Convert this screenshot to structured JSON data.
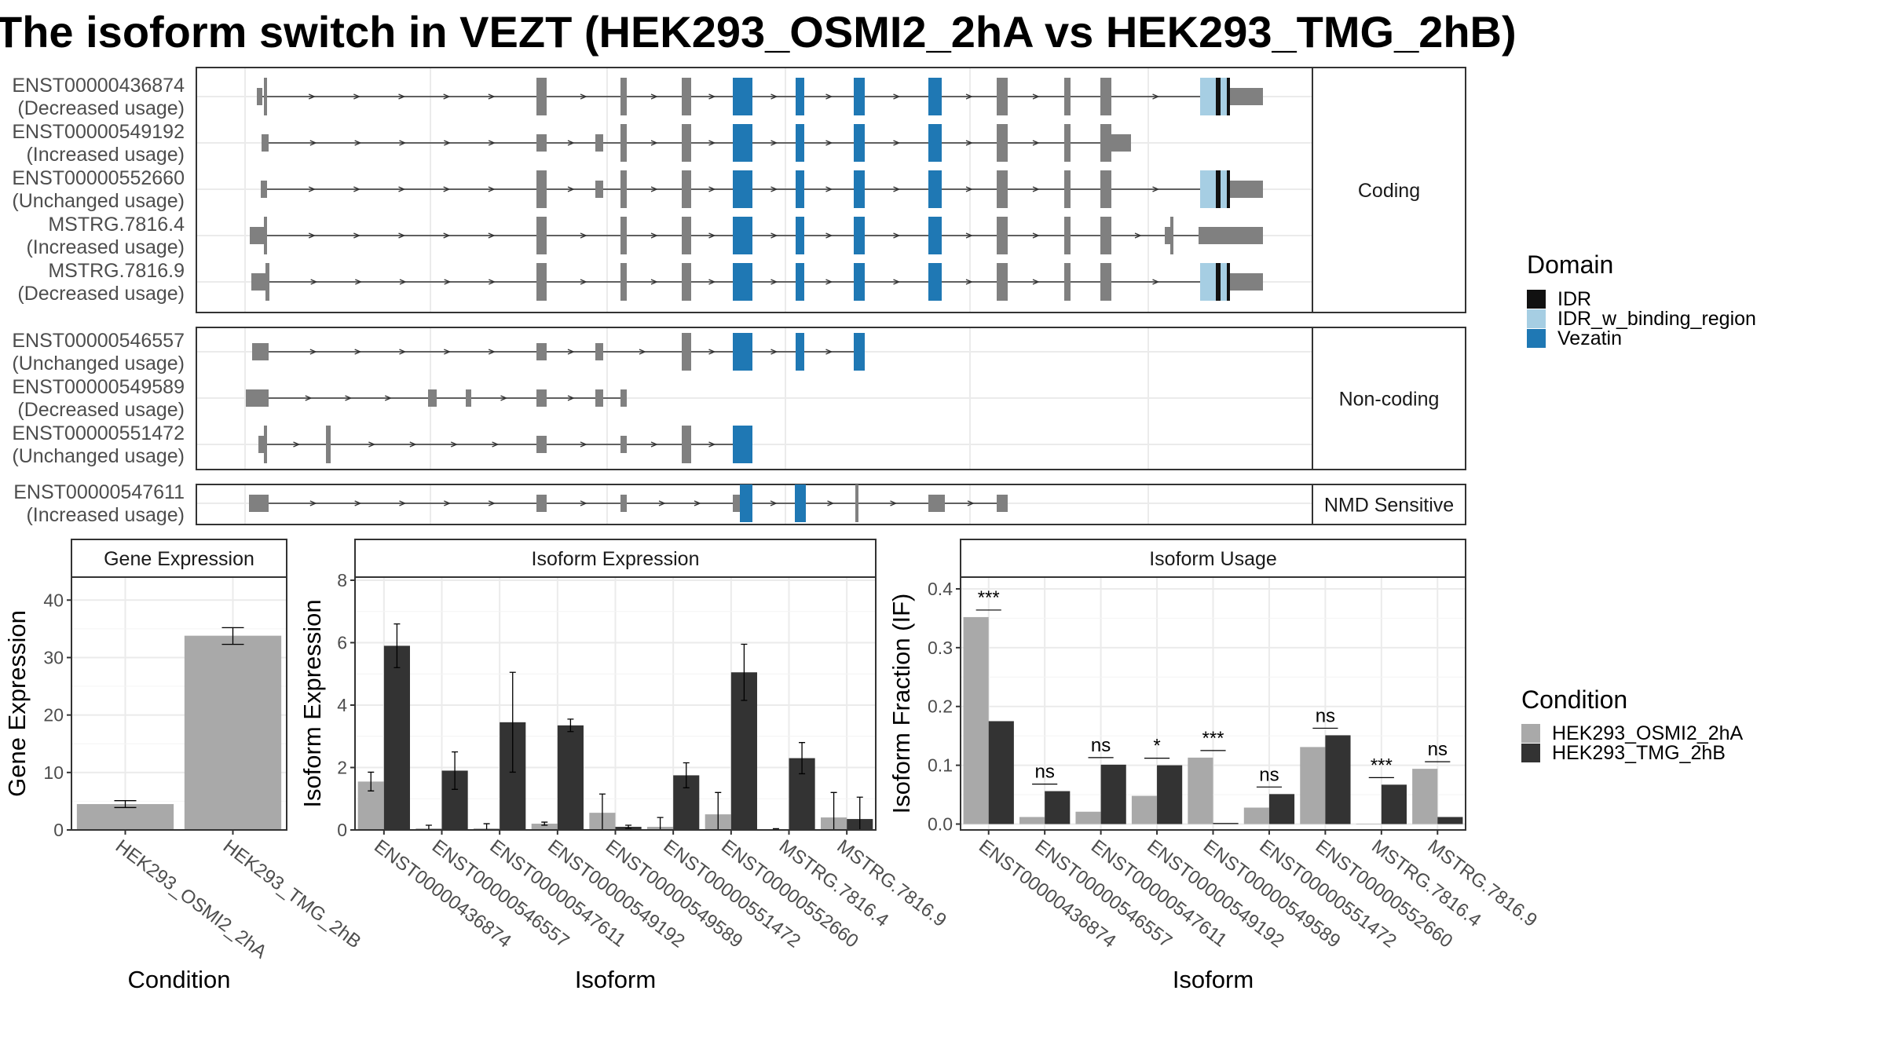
{
  "title": "The isoform switch in VEZT (HEK293_OSMI2_2hA vs HEK293_TMG_2hB)",
  "colors": {
    "cond_a": "#a9a9a9",
    "cond_b": "#333333",
    "exon": "#808080",
    "idr": "#111111",
    "idr_binding": "#a6cee3",
    "vezatin": "#1f78b4",
    "intron": "#333333"
  },
  "chart_data": [
    {
      "type": "gene-structure",
      "panels": [
        {
          "label": "Coding",
          "transcripts": [
            {
              "id": "ENST00000436874",
              "usage": "(Decreased usage)"
            },
            {
              "id": "ENST00000549192",
              "usage": "(Increased usage)"
            },
            {
              "id": "ENST00000552660",
              "usage": "(Unchanged usage)"
            },
            {
              "id": "MSTRG.7816.4",
              "usage": "(Increased usage)"
            },
            {
              "id": "MSTRG.7816.9",
              "usage": "(Decreased usage)"
            }
          ]
        },
        {
          "label": "Non-coding",
          "transcripts": [
            {
              "id": "ENST00000546557",
              "usage": "(Unchanged usage)"
            },
            {
              "id": "ENST00000549589",
              "usage": "(Decreased usage)"
            },
            {
              "id": "ENST00000551472",
              "usage": "(Unchanged usage)"
            }
          ]
        },
        {
          "label": "NMD Sensitive",
          "transcripts": [
            {
              "id": "ENST00000547611",
              "usage": "(Increased usage)"
            }
          ]
        }
      ],
      "legend": {
        "title": "Domain",
        "entries": [
          "IDR",
          "IDR_w_binding_region",
          "Vezatin"
        ]
      }
    },
    {
      "type": "bar",
      "title": "Gene Expression",
      "xlabel": "Condition",
      "ylabel": "Gene Expression",
      "categories": [
        "HEK293_OSMI2_2hA",
        "HEK293_TMG_2hB"
      ],
      "values": [
        4.5,
        33.8
      ],
      "errors": [
        [
          3.9,
          5.1
        ],
        [
          32.3,
          35.2
        ]
      ],
      "ylim": [
        0,
        44
      ],
      "yticks": [
        0,
        10,
        20,
        30,
        40
      ]
    },
    {
      "type": "bar",
      "title": "Isoform Expression",
      "xlabel": "Isoform",
      "ylabel": "Isoform Expression",
      "categories": [
        "ENST00000436874",
        "ENST00000546557",
        "ENST00000547611",
        "ENST00000549192",
        "ENST00000549589",
        "ENST00000551472",
        "ENST00000552660",
        "MSTRG.7816.4",
        "MSTRG.7816.9"
      ],
      "series": [
        {
          "name": "HEK293_OSMI2_2hA",
          "values": [
            1.55,
            0.05,
            0.05,
            0.2,
            0.55,
            0.1,
            0.5,
            0.02,
            0.4
          ],
          "errors": [
            [
              1.25,
              1.85
            ],
            [
              0.0,
              0.15
            ],
            [
              0.0,
              0.2
            ],
            [
              0.15,
              0.25
            ],
            [
              0.0,
              1.15
            ],
            [
              0.0,
              0.4
            ],
            [
              0.0,
              1.2
            ],
            [
              0.0,
              0.04
            ],
            [
              0.0,
              1.2
            ]
          ]
        },
        {
          "name": "HEK293_TMG_2hB",
          "values": [
            5.9,
            1.9,
            3.45,
            3.35,
            0.1,
            1.75,
            5.05,
            2.3,
            0.35
          ],
          "errors": [
            [
              5.2,
              6.6
            ],
            [
              1.3,
              2.5
            ],
            [
              1.85,
              5.05
            ],
            [
              3.15,
              3.55
            ],
            [
              0.05,
              0.15
            ],
            [
              1.35,
              2.15
            ],
            [
              4.15,
              5.95
            ],
            [
              1.8,
              2.8
            ],
            [
              0.0,
              1.05
            ]
          ]
        }
      ],
      "ylim": [
        0,
        8.1
      ],
      "yticks": [
        0,
        2,
        4,
        6,
        8
      ]
    },
    {
      "type": "bar",
      "title": "Isoform Usage",
      "xlabel": "Isoform",
      "ylabel": "Isoform Fraction (IF)",
      "categories": [
        "ENST00000436874",
        "ENST00000546557",
        "ENST00000547611",
        "ENST00000549192",
        "ENST00000549589",
        "ENST00000551472",
        "ENST00000552660",
        "MSTRG.7816.4",
        "MSTRG.7816.9"
      ],
      "series": [
        {
          "name": "HEK293_OSMI2_2hA",
          "values": [
            0.352,
            0.012,
            0.021,
            0.048,
            0.113,
            0.028,
            0.131,
            0.0,
            0.094
          ]
        },
        {
          "name": "HEK293_TMG_2hB",
          "values": [
            0.175,
            0.056,
            0.101,
            0.1,
            0.002,
            0.051,
            0.151,
            0.067,
            0.012
          ]
        }
      ],
      "significance": [
        "***",
        "ns",
        "ns",
        "*",
        "***",
        "ns",
        "ns",
        "***",
        "ns"
      ],
      "ylim": [
        -0.01,
        0.42
      ],
      "yticks": [
        0.0,
        0.1,
        0.2,
        0.3,
        0.4
      ],
      "ytick_labels": [
        "0.0",
        "0.1",
        "0.2",
        "0.3",
        "0.4"
      ]
    }
  ],
  "condition_legend": {
    "title": "Condition",
    "entries": [
      "HEK293_OSMI2_2hA",
      "HEK293_TMG_2hB"
    ]
  }
}
